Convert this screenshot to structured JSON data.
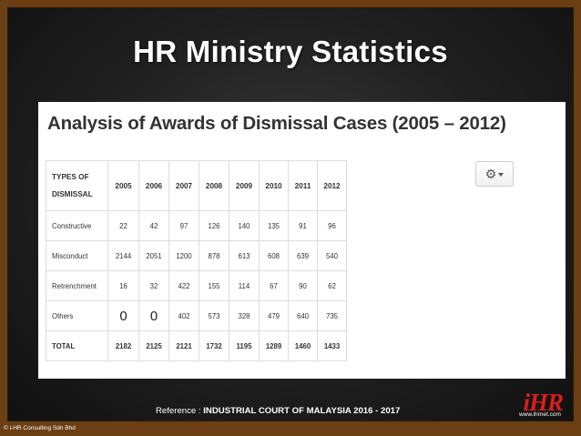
{
  "slide": {
    "title": "HR Ministry Statistics",
    "reference_label": "Reference : ",
    "reference_source": "INDUSTRIAL COURT OF MALAYSIA  2016 - 2017",
    "logo_text": "iHR",
    "website": "www.ihrnet.com",
    "copyright": "© i-HR Consulting Sdn Bhd",
    "colors": {
      "border": "#6b3e14",
      "background": "#1f1f1f",
      "logo": "#d81e1e"
    }
  },
  "screenshot": {
    "heading": "Analysis of Awards of Dismissal Cases (2005 – 2012)",
    "settings_icon": "gear-icon",
    "table": {
      "header_line1": "TYPES OF",
      "header_line2": "DISMISSAL",
      "years": [
        "2005",
        "2006",
        "2007",
        "2008",
        "2009",
        "2010",
        "2011",
        "2012"
      ],
      "rows": [
        {
          "label": "Constructive",
          "values": [
            "22",
            "42",
            "97",
            "126",
            "140",
            "135",
            "91",
            "96"
          ]
        },
        {
          "label": "Misconduct",
          "values": [
            "2144",
            "2051",
            "1200",
            "878",
            "613",
            "608",
            "639",
            "540"
          ]
        },
        {
          "label": "Retrenchment",
          "values": [
            "16",
            "32",
            "422",
            "155",
            "114",
            "67",
            "90",
            "62"
          ]
        },
        {
          "label": "Others",
          "values": [
            "0",
            "0",
            "402",
            "573",
            "328",
            "479",
            "640",
            "735"
          ]
        }
      ],
      "total": {
        "label": "TOTAL",
        "values": [
          "2182",
          "2125",
          "2121",
          "1732",
          "1195",
          "1289",
          "1460",
          "1433"
        ]
      }
    }
  }
}
